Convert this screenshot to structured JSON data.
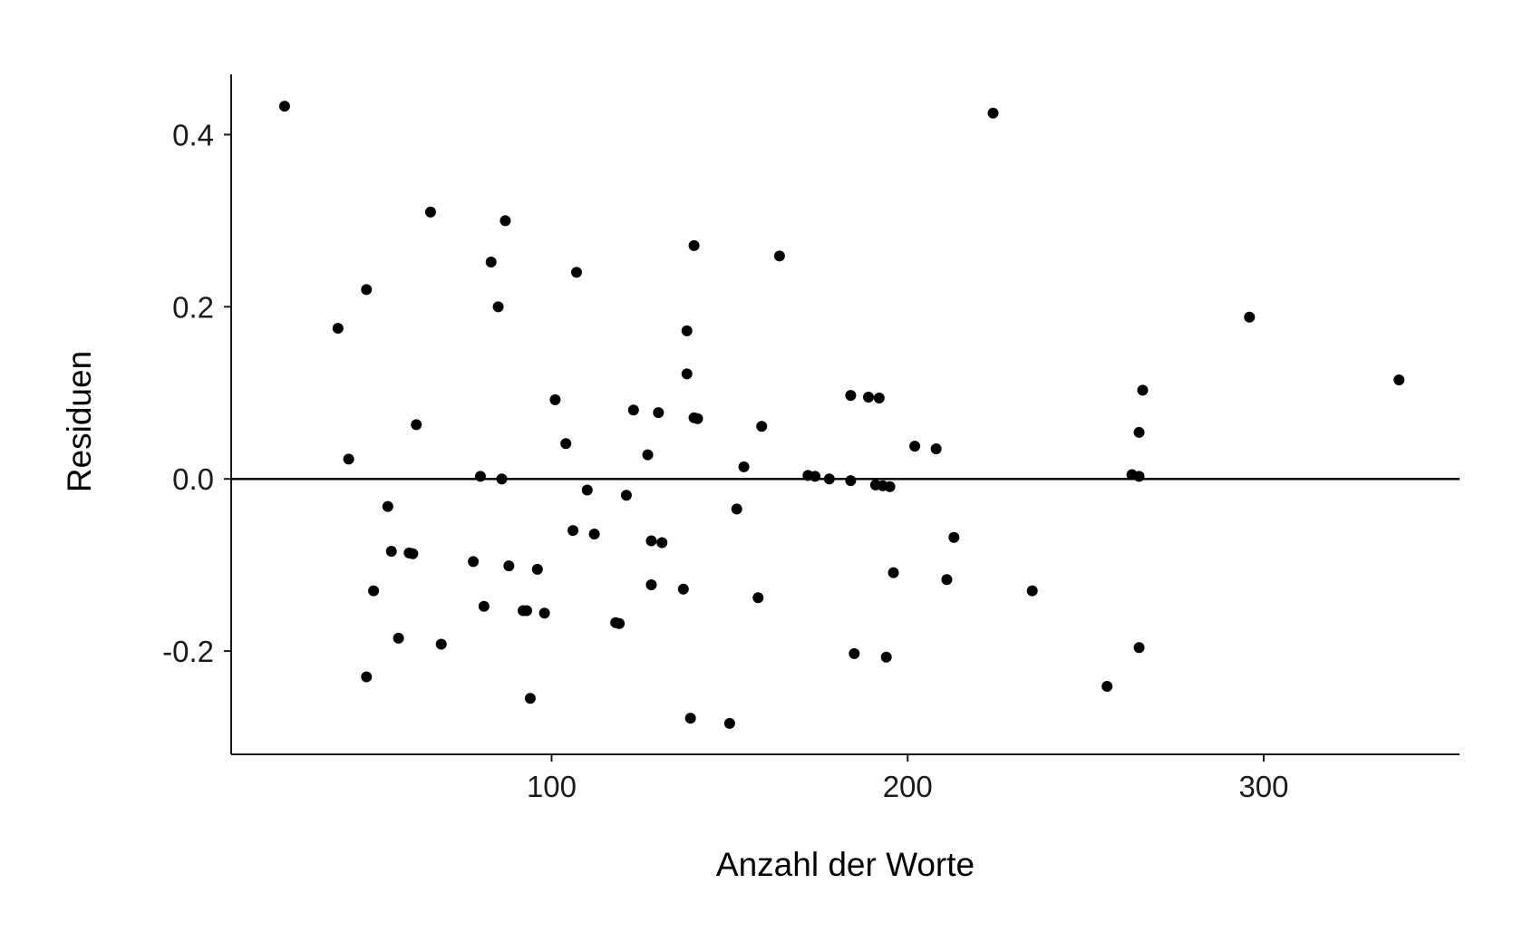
{
  "chart_data": {
    "type": "scatter",
    "title": "",
    "xlabel": "Anzahl der Worte",
    "ylabel": "Residuen",
    "xlim": [
      10,
      355
    ],
    "ylim": [
      -0.32,
      0.47
    ],
    "xticks": [
      100,
      200,
      300
    ],
    "xtick_labels": [
      "100",
      "200",
      "300"
    ],
    "yticks": [
      -0.2,
      0.0,
      0.2,
      0.4
    ],
    "ytick_labels": [
      "-0.2",
      "0.0",
      "0.2",
      "0.4"
    ],
    "reference_line_y": 0.0,
    "grid": false,
    "legend": "none",
    "point_color": "#000000",
    "series": [
      {
        "x": [
          25,
          40,
          43,
          48,
          48,
          50,
          54,
          55,
          57,
          60,
          61,
          62,
          66,
          69,
          78,
          80,
          81,
          83,
          85,
          86,
          87,
          88,
          92,
          93,
          94,
          96,
          98,
          101,
          104,
          106,
          107,
          110,
          112,
          118,
          119,
          121,
          123,
          127,
          128,
          128,
          130,
          131,
          137,
          138,
          138,
          139,
          140,
          140,
          141,
          150,
          152,
          154,
          158,
          159,
          164,
          172,
          174,
          178,
          184,
          184,
          185,
          189,
          191,
          192,
          193,
          194,
          195,
          196,
          202,
          208,
          211,
          213,
          224,
          235,
          256,
          263,
          265,
          265,
          265,
          266,
          296,
          338
        ],
        "y": [
          0.433,
          0.175,
          0.023,
          0.22,
          -0.23,
          -0.13,
          -0.032,
          -0.084,
          -0.185,
          -0.086,
          -0.087,
          0.063,
          0.31,
          -0.192,
          -0.096,
          0.003,
          -0.148,
          0.252,
          0.2,
          0.0,
          0.3,
          -0.101,
          -0.153,
          -0.153,
          -0.255,
          -0.105,
          -0.156,
          0.092,
          0.041,
          -0.06,
          0.24,
          -0.013,
          -0.064,
          -0.167,
          -0.168,
          -0.019,
          0.08,
          0.028,
          -0.072,
          -0.123,
          0.077,
          -0.074,
          -0.128,
          0.172,
          0.122,
          -0.278,
          0.271,
          0.071,
          0.07,
          -0.284,
          -0.035,
          0.014,
          -0.138,
          0.061,
          0.259,
          0.004,
          0.003,
          0.0,
          0.097,
          -0.002,
          -0.203,
          0.095,
          -0.007,
          0.094,
          -0.008,
          -0.207,
          -0.009,
          -0.109,
          0.038,
          0.035,
          -0.117,
          -0.068,
          0.425,
          -0.13,
          -0.241,
          0.005,
          0.054,
          0.003,
          -0.196,
          0.103,
          0.188,
          0.115
        ]
      }
    ]
  }
}
